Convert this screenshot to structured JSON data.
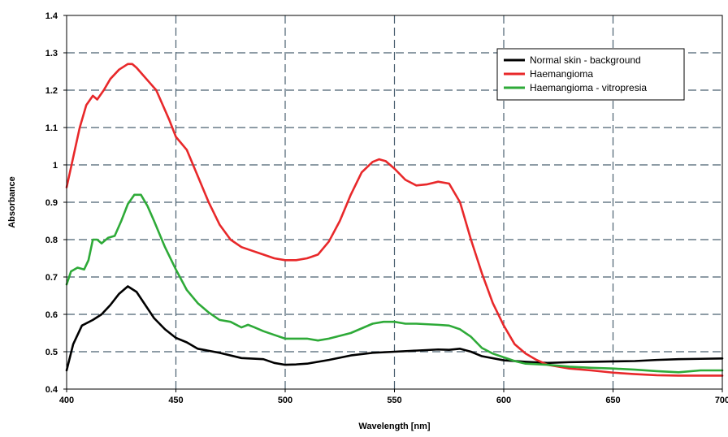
{
  "chart_data": {
    "type": "line",
    "xlabel": "Wavelength [nm]",
    "ylabel": "Absorbance",
    "xlim": [
      400,
      700
    ],
    "ylim": [
      0.4,
      1.4
    ],
    "x_ticks": [
      400,
      450,
      500,
      550,
      600,
      650,
      700
    ],
    "y_ticks": [
      0.4,
      0.5,
      0.6,
      0.7,
      0.8,
      0.9,
      1,
      1.1,
      1.2,
      1.3,
      1.4
    ],
    "x_tick_labels": [
      "400",
      "450",
      "500",
      "550",
      "600",
      "650",
      "700"
    ],
    "y_tick_labels": [
      "0.4",
      "0.5",
      "0.6",
      "0.7",
      "0.8",
      "0.9",
      "1",
      "1.1",
      "1.2",
      "1.3",
      "1.4"
    ],
    "grid": true,
    "legend_position": "top-right",
    "series": [
      {
        "name": "Normal skin - background",
        "color": "#000000",
        "points": [
          [
            400,
            0.45
          ],
          [
            403,
            0.52
          ],
          [
            407,
            0.57
          ],
          [
            412,
            0.585
          ],
          [
            416,
            0.6
          ],
          [
            420,
            0.625
          ],
          [
            424,
            0.655
          ],
          [
            428,
            0.675
          ],
          [
            432,
            0.66
          ],
          [
            436,
            0.625
          ],
          [
            440,
            0.59
          ],
          [
            445,
            0.56
          ],
          [
            450,
            0.537
          ],
          [
            455,
            0.525
          ],
          [
            460,
            0.508
          ],
          [
            470,
            0.497
          ],
          [
            480,
            0.483
          ],
          [
            490,
            0.48
          ],
          [
            495,
            0.47
          ],
          [
            500,
            0.465
          ],
          [
            505,
            0.466
          ],
          [
            510,
            0.468
          ],
          [
            520,
            0.478
          ],
          [
            530,
            0.49
          ],
          [
            540,
            0.497
          ],
          [
            550,
            0.5
          ],
          [
            560,
            0.503
          ],
          [
            570,
            0.506
          ],
          [
            575,
            0.505
          ],
          [
            580,
            0.508
          ],
          [
            585,
            0.5
          ],
          [
            590,
            0.488
          ],
          [
            600,
            0.477
          ],
          [
            610,
            0.473
          ],
          [
            620,
            0.47
          ],
          [
            630,
            0.472
          ],
          [
            640,
            0.473
          ],
          [
            650,
            0.474
          ],
          [
            660,
            0.475
          ],
          [
            670,
            0.478
          ],
          [
            680,
            0.48
          ],
          [
            690,
            0.481
          ],
          [
            700,
            0.482
          ]
        ]
      },
      {
        "name": "Haemangioma",
        "color": "#e8282a",
        "points": [
          [
            400,
            0.94
          ],
          [
            403,
            1.02
          ],
          [
            406,
            1.1
          ],
          [
            409,
            1.16
          ],
          [
            412,
            1.185
          ],
          [
            414,
            1.175
          ],
          [
            417,
            1.2
          ],
          [
            420,
            1.23
          ],
          [
            424,
            1.255
          ],
          [
            428,
            1.27
          ],
          [
            430,
            1.27
          ],
          [
            432,
            1.26
          ],
          [
            435,
            1.24
          ],
          [
            438,
            1.22
          ],
          [
            441,
            1.2
          ],
          [
            444,
            1.16
          ],
          [
            447,
            1.12
          ],
          [
            450,
            1.075
          ],
          [
            455,
            1.04
          ],
          [
            460,
            0.97
          ],
          [
            465,
            0.9
          ],
          [
            470,
            0.84
          ],
          [
            475,
            0.8
          ],
          [
            480,
            0.78
          ],
          [
            485,
            0.77
          ],
          [
            490,
            0.76
          ],
          [
            495,
            0.75
          ],
          [
            500,
            0.745
          ],
          [
            505,
            0.745
          ],
          [
            510,
            0.75
          ],
          [
            515,
            0.76
          ],
          [
            520,
            0.795
          ],
          [
            525,
            0.85
          ],
          [
            530,
            0.92
          ],
          [
            535,
            0.98
          ],
          [
            540,
            1.008
          ],
          [
            543,
            1.015
          ],
          [
            546,
            1.01
          ],
          [
            550,
            0.99
          ],
          [
            555,
            0.96
          ],
          [
            560,
            0.945
          ],
          [
            565,
            0.948
          ],
          [
            570,
            0.955
          ],
          [
            575,
            0.95
          ],
          [
            580,
            0.9
          ],
          [
            585,
            0.8
          ],
          [
            590,
            0.71
          ],
          [
            595,
            0.63
          ],
          [
            600,
            0.57
          ],
          [
            605,
            0.52
          ],
          [
            610,
            0.495
          ],
          [
            615,
            0.478
          ],
          [
            620,
            0.465
          ],
          [
            630,
            0.455
          ],
          [
            640,
            0.45
          ],
          [
            650,
            0.444
          ],
          [
            660,
            0.44
          ],
          [
            670,
            0.437
          ],
          [
            680,
            0.436
          ],
          [
            690,
            0.436
          ],
          [
            700,
            0.436
          ]
        ]
      },
      {
        "name": "Haemangioma - vitropresia",
        "color": "#2eaa38",
        "points": [
          [
            400,
            0.68
          ],
          [
            402,
            0.715
          ],
          [
            405,
            0.725
          ],
          [
            408,
            0.72
          ],
          [
            410,
            0.745
          ],
          [
            412,
            0.8
          ],
          [
            414,
            0.8
          ],
          [
            416,
            0.79
          ],
          [
            419,
            0.805
          ],
          [
            422,
            0.81
          ],
          [
            425,
            0.85
          ],
          [
            428,
            0.895
          ],
          [
            431,
            0.92
          ],
          [
            434,
            0.92
          ],
          [
            437,
            0.89
          ],
          [
            440,
            0.85
          ],
          [
            445,
            0.78
          ],
          [
            450,
            0.72
          ],
          [
            455,
            0.665
          ],
          [
            460,
            0.63
          ],
          [
            465,
            0.605
          ],
          [
            470,
            0.585
          ],
          [
            475,
            0.58
          ],
          [
            480,
            0.565
          ],
          [
            483,
            0.572
          ],
          [
            486,
            0.565
          ],
          [
            490,
            0.555
          ],
          [
            495,
            0.545
          ],
          [
            500,
            0.535
          ],
          [
            510,
            0.535
          ],
          [
            515,
            0.53
          ],
          [
            520,
            0.535
          ],
          [
            530,
            0.55
          ],
          [
            540,
            0.575
          ],
          [
            545,
            0.58
          ],
          [
            550,
            0.58
          ],
          [
            555,
            0.575
          ],
          [
            560,
            0.575
          ],
          [
            570,
            0.572
          ],
          [
            575,
            0.57
          ],
          [
            580,
            0.56
          ],
          [
            585,
            0.54
          ],
          [
            590,
            0.51
          ],
          [
            595,
            0.495
          ],
          [
            600,
            0.485
          ],
          [
            605,
            0.475
          ],
          [
            610,
            0.468
          ],
          [
            620,
            0.465
          ],
          [
            630,
            0.46
          ],
          [
            640,
            0.457
          ],
          [
            650,
            0.455
          ],
          [
            660,
            0.452
          ],
          [
            670,
            0.448
          ],
          [
            680,
            0.445
          ],
          [
            690,
            0.45
          ],
          [
            700,
            0.45
          ]
        ]
      }
    ]
  }
}
